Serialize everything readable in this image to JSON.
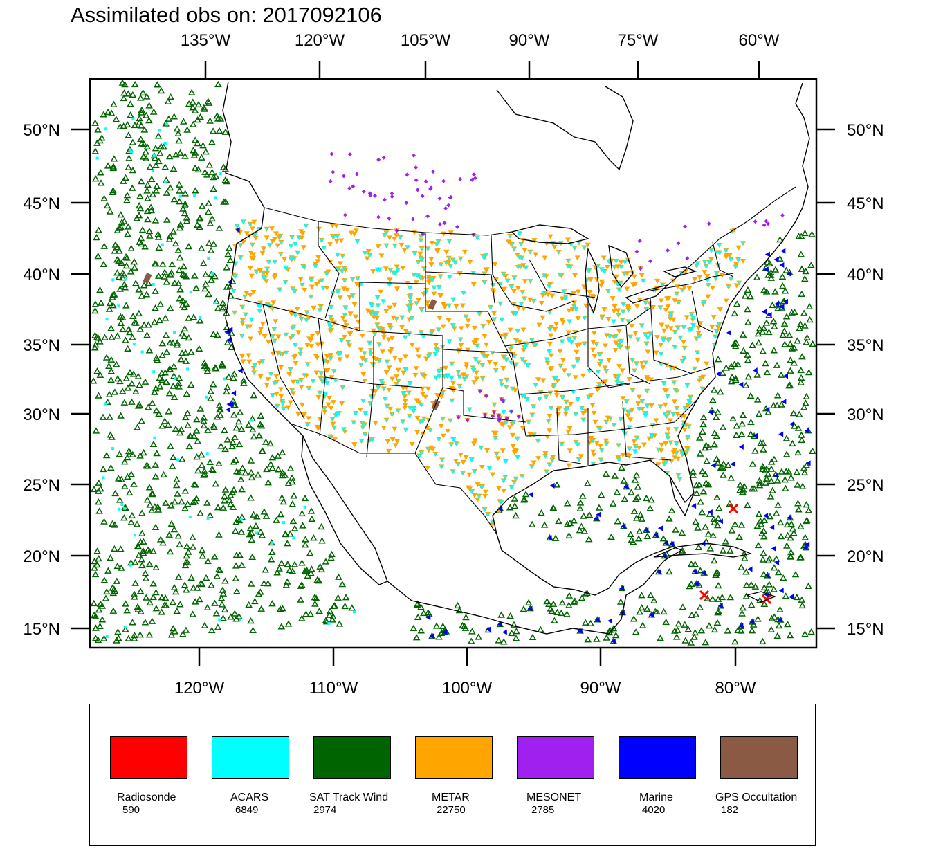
{
  "title": "Assimilated obs on: 2017092106",
  "axes": {
    "top_lon_labels": [
      "135°W",
      "120°W",
      "105°W",
      "90°W",
      "75°W",
      "60°W"
    ],
    "bottom_lon_labels": [
      "120°W",
      "110°W",
      "100°W",
      "90°W",
      "80°W"
    ],
    "lat_labels": [
      "50°N",
      "45°N",
      "40°N",
      "35°N",
      "30°N",
      "25°N",
      "20°N",
      "15°N"
    ]
  },
  "legend": [
    {
      "name": "Radiosonde",
      "count": "590",
      "color": "#ff0000",
      "marker": "x-mark"
    },
    {
      "name": "ACARS",
      "count": "6849",
      "color": "#00ffff",
      "marker": "square"
    },
    {
      "name": "SAT Track Wind",
      "count": "2974",
      "color": "#006400",
      "marker": "open-triangle"
    },
    {
      "name": "METAR",
      "count": "22750",
      "color": "#ffa500",
      "marker": "down-triangle"
    },
    {
      "name": "MESONET",
      "count": "2785",
      "color": "#a020f0",
      "marker": "diamond"
    },
    {
      "name": "Marine",
      "count": "4020",
      "color": "#0000ff",
      "marker": "left-triangle"
    },
    {
      "name": "GPS Occultation",
      "count": "182",
      "color": "#8b5a45",
      "marker": "block"
    }
  ]
}
